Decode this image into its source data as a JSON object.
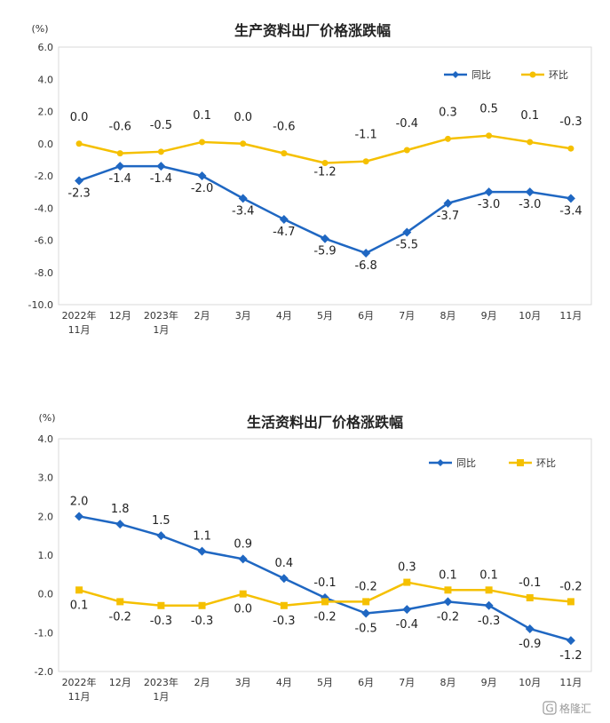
{
  "colors": {
    "yoy": "#1f67c2",
    "mom": "#f5c000"
  },
  "watermark": {
    "logo": "G",
    "text": "格隆汇"
  },
  "chart_data": [
    {
      "type": "line",
      "title": "生产资料出厂价格涨跌幅",
      "unit": "(%)",
      "ylim": [
        -10.0,
        6.0
      ],
      "yticks": [
        "6.0",
        "4.0",
        "2.0",
        "0.0",
        "-2.0",
        "-4.0",
        "-6.0",
        "-8.0",
        "-10.0"
      ],
      "categories": [
        [
          "2022年",
          "11月"
        ],
        [
          "12月"
        ],
        [
          "2023年",
          "1月"
        ],
        [
          "2月"
        ],
        [
          "3月"
        ],
        [
          "4月"
        ],
        [
          "5月"
        ],
        [
          "6月"
        ],
        [
          "7月"
        ],
        [
          "8月"
        ],
        [
          "9月"
        ],
        [
          "10月"
        ],
        [
          "11月"
        ]
      ],
      "legend": "top-right",
      "series": [
        {
          "name": "同比",
          "marker": "diamond",
          "color": "#1f67c2",
          "values": [
            -2.3,
            -1.4,
            -1.4,
            -2.0,
            -3.4,
            -4.7,
            -5.9,
            -6.8,
            -5.5,
            -3.7,
            -3.0,
            -3.0,
            -3.4
          ],
          "labels": [
            "-2.3",
            "-1.4",
            "-1.4",
            "-2.0",
            "-3.4",
            "-4.7",
            "-5.9",
            "-6.8",
            "-5.5",
            "-3.7",
            "-3.0",
            "-3.0",
            "-3.4"
          ]
        },
        {
          "name": "环比",
          "marker": "circle",
          "color": "#f5c000",
          "values": [
            0.0,
            -0.6,
            -0.5,
            0.1,
            0.0,
            -0.6,
            -1.2,
            -1.1,
            -0.4,
            0.3,
            0.5,
            0.1,
            -0.3
          ],
          "labels": [
            "0.0",
            "-0.6",
            "-0.5",
            "0.1",
            "0.0",
            "-0.6",
            "-1.2",
            "-1.1",
            "-0.4",
            "0.3",
            "0.5",
            "0.1",
            "-0.3"
          ]
        }
      ]
    },
    {
      "type": "line",
      "title": "生活资料出厂价格涨跌幅",
      "unit": "(%)",
      "ylim": [
        -2.0,
        4.0
      ],
      "yticks": [
        "4.0",
        "3.0",
        "2.0",
        "1.0",
        "0.0",
        "-1.0",
        "-2.0"
      ],
      "categories": [
        [
          "2022年",
          "11月"
        ],
        [
          "12月"
        ],
        [
          "2023年",
          "1月"
        ],
        [
          "2月"
        ],
        [
          "3月"
        ],
        [
          "4月"
        ],
        [
          "5月"
        ],
        [
          "6月"
        ],
        [
          "7月"
        ],
        [
          "8月"
        ],
        [
          "9月"
        ],
        [
          "10月"
        ],
        [
          "11月"
        ]
      ],
      "legend": "top-right",
      "series": [
        {
          "name": "同比",
          "marker": "diamond",
          "color": "#1f67c2",
          "values": [
            2.0,
            1.8,
            1.5,
            1.1,
            0.9,
            0.4,
            -0.1,
            -0.5,
            -0.4,
            -0.2,
            -0.3,
            -0.9,
            -1.2
          ],
          "labels": [
            "2.0",
            "1.8",
            "1.5",
            "1.1",
            "0.9",
            "0.4",
            "-0.1",
            "-0.5",
            "-0.4",
            "-0.2",
            "-0.3",
            "-0.9",
            "-1.2"
          ]
        },
        {
          "name": "环比",
          "marker": "square",
          "color": "#f5c000",
          "values": [
            0.1,
            -0.2,
            -0.3,
            -0.3,
            0.0,
            -0.3,
            -0.2,
            -0.2,
            0.3,
            0.1,
            0.1,
            -0.1,
            -0.2
          ],
          "labels": [
            "0.1",
            "-0.2",
            "-0.3",
            "-0.3",
            "0.0",
            "-0.3",
            "-0.2",
            "-0.2",
            "0.3",
            "0.1",
            "0.1",
            "-0.1",
            "-0.2"
          ]
        }
      ]
    }
  ]
}
